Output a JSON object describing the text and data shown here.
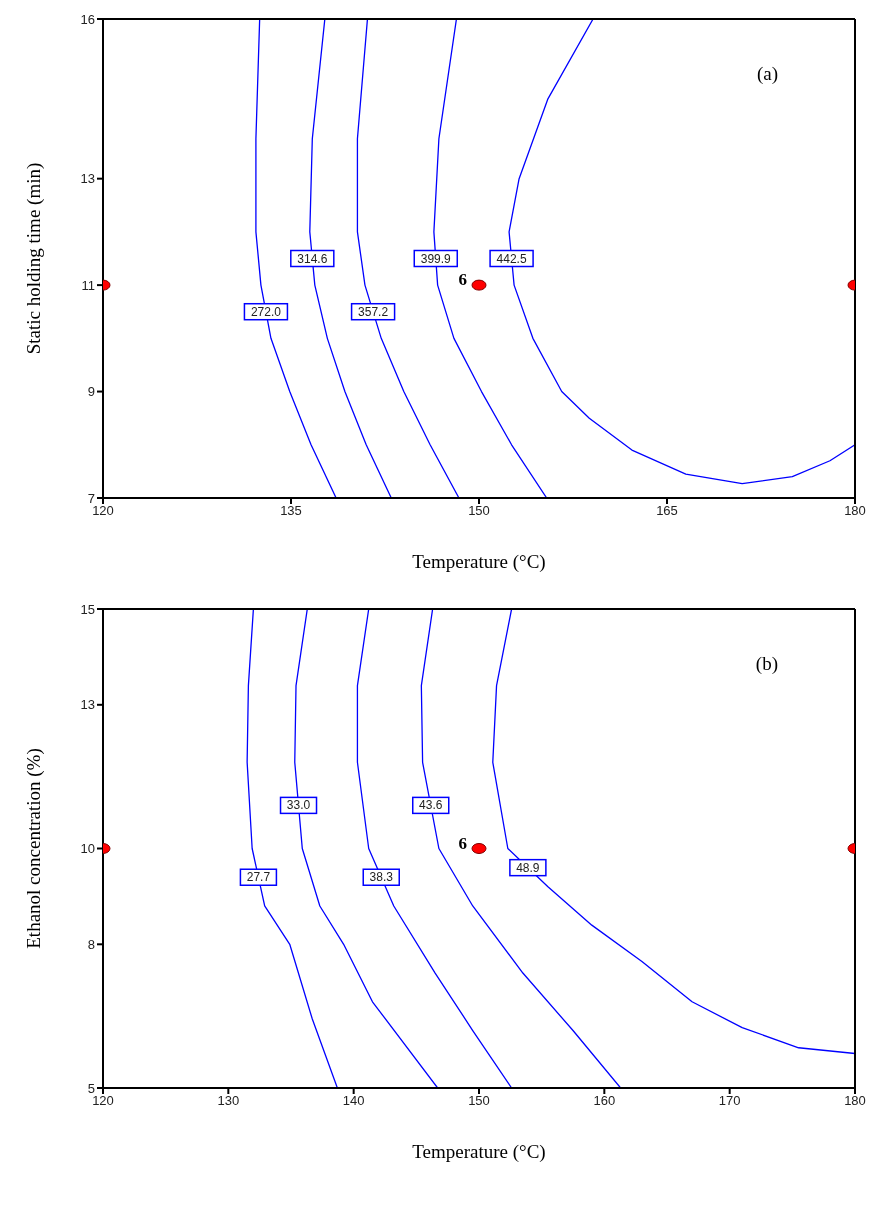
{
  "chart_data": [
    {
      "type": "line",
      "xlabel": "Temperature (°C)",
      "ylabel": "Static holding time (min)",
      "xlim": [
        120,
        180
      ],
      "xticks": [
        120,
        135,
        150,
        165,
        180
      ],
      "ylim": [
        7,
        16
      ],
      "yticks": [
        7,
        9,
        11,
        13,
        16
      ],
      "grid": false,
      "legend": false,
      "annotations": [
        "(a)",
        {
          "text": "6",
          "x": 150,
          "y": 11
        }
      ],
      "series": [
        {
          "name": "272.0",
          "color": "#0000ff",
          "x": [
            132.5,
            132.2,
            132.2,
            132.6,
            133.4,
            134.9,
            136.6,
            138.6
          ],
          "values": [
            16,
            13.75,
            12,
            11,
            10,
            9,
            8,
            7
          ]
        },
        {
          "name": "314.6",
          "color": "#0000ff",
          "x": [
            137.7,
            136.7,
            136.5,
            136.9,
            137.9,
            139.3,
            141.0,
            143.0
          ],
          "values": [
            16,
            13.75,
            12,
            11,
            10,
            9,
            8,
            7
          ]
        },
        {
          "name": "357.2",
          "color": "#0000ff",
          "x": [
            141.1,
            140.3,
            140.3,
            140.9,
            142.2,
            144.0,
            146.1,
            148.4
          ],
          "values": [
            16,
            13.75,
            12,
            11,
            10,
            9,
            8,
            7
          ]
        },
        {
          "name": "399.9",
          "color": "#0000ff",
          "x": [
            148.2,
            146.8,
            146.4,
            146.7,
            148.0,
            150.2,
            152.6,
            155.4
          ],
          "values": [
            16,
            13.75,
            12,
            11,
            10,
            9,
            8,
            7
          ]
        },
        {
          "name": "442.5",
          "color": "#0000ff",
          "x": [
            159.1,
            155.5,
            153.2,
            152.4,
            152.8,
            154.3,
            156.6,
            158.8,
            162.2,
            166.5,
            171.0,
            175.0,
            178.0,
            180.0
          ],
          "values": [
            16,
            14.5,
            13,
            12,
            11,
            10,
            9,
            8.5,
            7.9,
            7.45,
            7.27,
            7.4,
            7.7,
            8.0
          ]
        },
        {
          "type": "scatter",
          "color": "#ff0000",
          "x": [
            120,
            150,
            180
          ],
          "values": [
            11,
            11,
            11
          ]
        }
      ]
    },
    {
      "type": "line",
      "xlabel": "Temperature (°C)",
      "ylabel": "Ethanol concentration (%)",
      "xlim": [
        120,
        180
      ],
      "xticks": [
        120,
        130,
        140,
        150,
        160,
        170,
        180
      ],
      "ylim": [
        5,
        15
      ],
      "yticks": [
        5,
        8,
        10,
        13,
        15
      ],
      "grid": false,
      "legend": false,
      "annotations": [
        "(b)",
        {
          "text": "6",
          "x": 150,
          "y": 10
        }
      ],
      "series": [
        {
          "name": "27.7",
          "color": "#0000ff",
          "x": [
            132.0,
            131.6,
            131.5,
            131.9,
            132.9,
            134.9,
            136.7,
            138.7
          ],
          "values": [
            15,
            13.4,
            11.8,
            10,
            8.8,
            8,
            6.44,
            5
          ]
        },
        {
          "name": "33.0",
          "color": "#0000ff",
          "x": [
            136.3,
            135.4,
            135.3,
            135.9,
            137.3,
            139.2,
            141.5,
            146.7
          ],
          "values": [
            15,
            13.4,
            11.8,
            10,
            8.8,
            8,
            6.8,
            5
          ]
        },
        {
          "name": "38.3",
          "color": "#0000ff",
          "x": [
            141.2,
            140.3,
            140.3,
            141.2,
            143.2,
            146.5,
            149.5,
            152.6
          ],
          "values": [
            15,
            13.4,
            11.8,
            10,
            8.8,
            7.4,
            6.2,
            5
          ]
        },
        {
          "name": "43.6",
          "color": "#0000ff",
          "x": [
            146.3,
            145.4,
            145.5,
            146.8,
            149.5,
            153.5,
            157.5,
            161.3
          ],
          "values": [
            15,
            13.4,
            11.8,
            10,
            8.8,
            7.4,
            6.2,
            5
          ]
        },
        {
          "name": "48.9",
          "color": "#0000ff",
          "x": [
            152.6,
            151.4,
            151.1,
            152.3,
            155.5,
            159.0,
            163.0,
            167.0,
            171.0,
            175.5,
            180.0
          ],
          "values": [
            15,
            13.4,
            11.8,
            10,
            9.2,
            8.4,
            7.64,
            6.8,
            6.26,
            5.84,
            5.72
          ]
        },
        {
          "type": "scatter",
          "color": "#ff0000",
          "x": [
            120,
            150,
            180
          ],
          "values": [
            10,
            10,
            10
          ]
        }
      ]
    }
  ]
}
